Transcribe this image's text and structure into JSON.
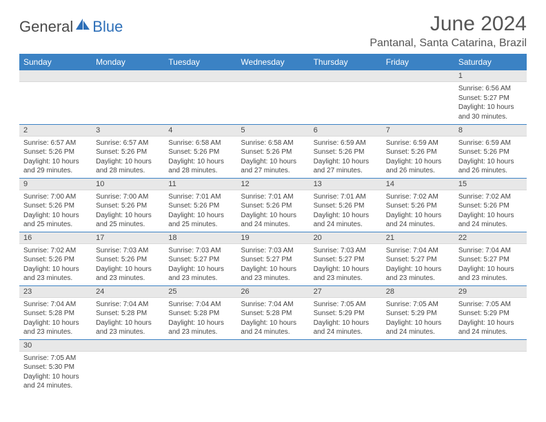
{
  "brand": {
    "part1": "General",
    "part2": "Blue"
  },
  "title": "June 2024",
  "location": "Pantanal, Santa Catarina, Brazil",
  "colors": {
    "header_bg": "#3b82c4",
    "header_text": "#ffffff",
    "daynum_bg": "#e8e8e8",
    "border": "#3b82c4",
    "brand_dark": "#4a4a4a",
    "brand_blue": "#2d6fb8"
  },
  "weekdays": [
    "Sunday",
    "Monday",
    "Tuesday",
    "Wednesday",
    "Thursday",
    "Friday",
    "Saturday"
  ],
  "weeks": [
    [
      null,
      null,
      null,
      null,
      null,
      null,
      {
        "n": "1",
        "sunrise": "Sunrise: 6:56 AM",
        "sunset": "Sunset: 5:27 PM",
        "dl1": "Daylight: 10 hours",
        "dl2": "and 30 minutes."
      }
    ],
    [
      {
        "n": "2",
        "sunrise": "Sunrise: 6:57 AM",
        "sunset": "Sunset: 5:26 PM",
        "dl1": "Daylight: 10 hours",
        "dl2": "and 29 minutes."
      },
      {
        "n": "3",
        "sunrise": "Sunrise: 6:57 AM",
        "sunset": "Sunset: 5:26 PM",
        "dl1": "Daylight: 10 hours",
        "dl2": "and 28 minutes."
      },
      {
        "n": "4",
        "sunrise": "Sunrise: 6:58 AM",
        "sunset": "Sunset: 5:26 PM",
        "dl1": "Daylight: 10 hours",
        "dl2": "and 28 minutes."
      },
      {
        "n": "5",
        "sunrise": "Sunrise: 6:58 AM",
        "sunset": "Sunset: 5:26 PM",
        "dl1": "Daylight: 10 hours",
        "dl2": "and 27 minutes."
      },
      {
        "n": "6",
        "sunrise": "Sunrise: 6:59 AM",
        "sunset": "Sunset: 5:26 PM",
        "dl1": "Daylight: 10 hours",
        "dl2": "and 27 minutes."
      },
      {
        "n": "7",
        "sunrise": "Sunrise: 6:59 AM",
        "sunset": "Sunset: 5:26 PM",
        "dl1": "Daylight: 10 hours",
        "dl2": "and 26 minutes."
      },
      {
        "n": "8",
        "sunrise": "Sunrise: 6:59 AM",
        "sunset": "Sunset: 5:26 PM",
        "dl1": "Daylight: 10 hours",
        "dl2": "and 26 minutes."
      }
    ],
    [
      {
        "n": "9",
        "sunrise": "Sunrise: 7:00 AM",
        "sunset": "Sunset: 5:26 PM",
        "dl1": "Daylight: 10 hours",
        "dl2": "and 25 minutes."
      },
      {
        "n": "10",
        "sunrise": "Sunrise: 7:00 AM",
        "sunset": "Sunset: 5:26 PM",
        "dl1": "Daylight: 10 hours",
        "dl2": "and 25 minutes."
      },
      {
        "n": "11",
        "sunrise": "Sunrise: 7:01 AM",
        "sunset": "Sunset: 5:26 PM",
        "dl1": "Daylight: 10 hours",
        "dl2": "and 25 minutes."
      },
      {
        "n": "12",
        "sunrise": "Sunrise: 7:01 AM",
        "sunset": "Sunset: 5:26 PM",
        "dl1": "Daylight: 10 hours",
        "dl2": "and 24 minutes."
      },
      {
        "n": "13",
        "sunrise": "Sunrise: 7:01 AM",
        "sunset": "Sunset: 5:26 PM",
        "dl1": "Daylight: 10 hours",
        "dl2": "and 24 minutes."
      },
      {
        "n": "14",
        "sunrise": "Sunrise: 7:02 AM",
        "sunset": "Sunset: 5:26 PM",
        "dl1": "Daylight: 10 hours",
        "dl2": "and 24 minutes."
      },
      {
        "n": "15",
        "sunrise": "Sunrise: 7:02 AM",
        "sunset": "Sunset: 5:26 PM",
        "dl1": "Daylight: 10 hours",
        "dl2": "and 24 minutes."
      }
    ],
    [
      {
        "n": "16",
        "sunrise": "Sunrise: 7:02 AM",
        "sunset": "Sunset: 5:26 PM",
        "dl1": "Daylight: 10 hours",
        "dl2": "and 23 minutes."
      },
      {
        "n": "17",
        "sunrise": "Sunrise: 7:03 AM",
        "sunset": "Sunset: 5:26 PM",
        "dl1": "Daylight: 10 hours",
        "dl2": "and 23 minutes."
      },
      {
        "n": "18",
        "sunrise": "Sunrise: 7:03 AM",
        "sunset": "Sunset: 5:27 PM",
        "dl1": "Daylight: 10 hours",
        "dl2": "and 23 minutes."
      },
      {
        "n": "19",
        "sunrise": "Sunrise: 7:03 AM",
        "sunset": "Sunset: 5:27 PM",
        "dl1": "Daylight: 10 hours",
        "dl2": "and 23 minutes."
      },
      {
        "n": "20",
        "sunrise": "Sunrise: 7:03 AM",
        "sunset": "Sunset: 5:27 PM",
        "dl1": "Daylight: 10 hours",
        "dl2": "and 23 minutes."
      },
      {
        "n": "21",
        "sunrise": "Sunrise: 7:04 AM",
        "sunset": "Sunset: 5:27 PM",
        "dl1": "Daylight: 10 hours",
        "dl2": "and 23 minutes."
      },
      {
        "n": "22",
        "sunrise": "Sunrise: 7:04 AM",
        "sunset": "Sunset: 5:27 PM",
        "dl1": "Daylight: 10 hours",
        "dl2": "and 23 minutes."
      }
    ],
    [
      {
        "n": "23",
        "sunrise": "Sunrise: 7:04 AM",
        "sunset": "Sunset: 5:28 PM",
        "dl1": "Daylight: 10 hours",
        "dl2": "and 23 minutes."
      },
      {
        "n": "24",
        "sunrise": "Sunrise: 7:04 AM",
        "sunset": "Sunset: 5:28 PM",
        "dl1": "Daylight: 10 hours",
        "dl2": "and 23 minutes."
      },
      {
        "n": "25",
        "sunrise": "Sunrise: 7:04 AM",
        "sunset": "Sunset: 5:28 PM",
        "dl1": "Daylight: 10 hours",
        "dl2": "and 23 minutes."
      },
      {
        "n": "26",
        "sunrise": "Sunrise: 7:04 AM",
        "sunset": "Sunset: 5:28 PM",
        "dl1": "Daylight: 10 hours",
        "dl2": "and 24 minutes."
      },
      {
        "n": "27",
        "sunrise": "Sunrise: 7:05 AM",
        "sunset": "Sunset: 5:29 PM",
        "dl1": "Daylight: 10 hours",
        "dl2": "and 24 minutes."
      },
      {
        "n": "28",
        "sunrise": "Sunrise: 7:05 AM",
        "sunset": "Sunset: 5:29 PM",
        "dl1": "Daylight: 10 hours",
        "dl2": "and 24 minutes."
      },
      {
        "n": "29",
        "sunrise": "Sunrise: 7:05 AM",
        "sunset": "Sunset: 5:29 PM",
        "dl1": "Daylight: 10 hours",
        "dl2": "and 24 minutes."
      }
    ],
    [
      {
        "n": "30",
        "sunrise": "Sunrise: 7:05 AM",
        "sunset": "Sunset: 5:30 PM",
        "dl1": "Daylight: 10 hours",
        "dl2": "and 24 minutes."
      },
      null,
      null,
      null,
      null,
      null,
      null
    ]
  ]
}
